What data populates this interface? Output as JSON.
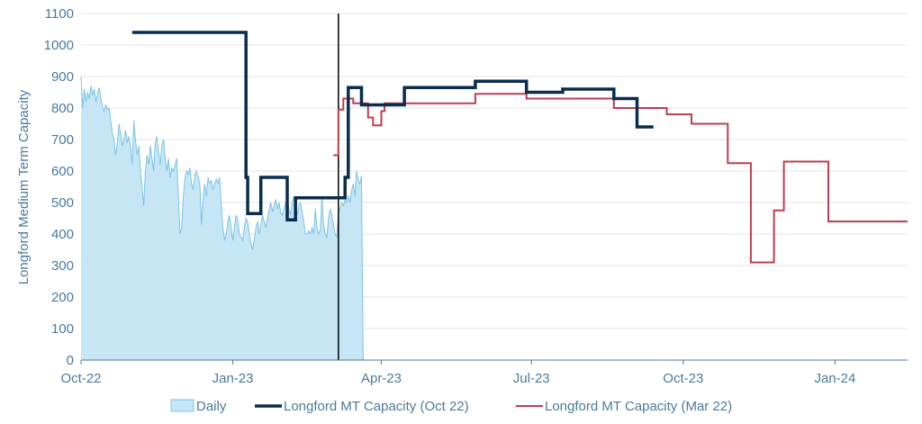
{
  "chart_data": {
    "type": "line",
    "title": "",
    "xlabel": "",
    "ylabel": "Longford Medium Term Capacity",
    "ylim": [
      0,
      1100
    ],
    "y_ticks": [
      0,
      100,
      200,
      300,
      400,
      500,
      600,
      700,
      800,
      900,
      1000,
      1100
    ],
    "x_range": [
      "2022-10-01",
      "2024-02-14"
    ],
    "x_ticks": [
      {
        "date": "2022-10-01",
        "label": "Oct-22"
      },
      {
        "date": "2023-01-01",
        "label": "Jan-23"
      },
      {
        "date": "2023-04-01",
        "label": "Apr-23"
      },
      {
        "date": "2023-07-01",
        "label": "Jul-23"
      },
      {
        "date": "2023-10-01",
        "label": "Oct-23"
      },
      {
        "date": "2024-01-01",
        "label": "Jan-24"
      }
    ],
    "grid": "horizontal",
    "legend_position": "bottom",
    "vertical_marker": "2023-03-06",
    "colors": {
      "daily_fill": "#c6e6f5",
      "daily_line": "#7cc4e4",
      "oct22": "#0a2c4e",
      "mar22": "#be3d4f",
      "gridline": "#e6e6e6",
      "axis": "#4a7b9d",
      "marker": "#000000"
    },
    "series": [
      {
        "name": "Daily",
        "kind": "area",
        "points": [
          [
            "2022-10-01",
            900
          ],
          [
            "2022-10-02",
            800
          ],
          [
            "2022-10-03",
            860
          ],
          [
            "2022-10-04",
            820
          ],
          [
            "2022-10-05",
            850
          ],
          [
            "2022-10-06",
            830
          ],
          [
            "2022-10-07",
            870
          ],
          [
            "2022-10-08",
            840
          ],
          [
            "2022-10-09",
            860
          ],
          [
            "2022-10-10",
            820
          ],
          [
            "2022-10-11",
            845
          ],
          [
            "2022-10-12",
            865
          ],
          [
            "2022-10-13",
            830
          ],
          [
            "2022-10-14",
            805
          ],
          [
            "2022-10-15",
            790
          ],
          [
            "2022-10-16",
            810
          ],
          [
            "2022-10-17",
            795
          ],
          [
            "2022-10-18",
            800
          ],
          [
            "2022-10-19",
            760
          ],
          [
            "2022-10-20",
            720
          ],
          [
            "2022-10-21",
            700
          ],
          [
            "2022-10-22",
            650
          ],
          [
            "2022-10-23",
            690
          ],
          [
            "2022-10-24",
            750
          ],
          [
            "2022-10-25",
            720
          ],
          [
            "2022-10-26",
            680
          ],
          [
            "2022-10-27",
            700
          ],
          [
            "2022-10-28",
            730
          ],
          [
            "2022-10-29",
            690
          ],
          [
            "2022-10-30",
            710
          ],
          [
            "2022-10-31",
            680
          ],
          [
            "2022-11-01",
            620
          ],
          [
            "2022-11-02",
            760
          ],
          [
            "2022-11-03",
            700
          ],
          [
            "2022-11-04",
            650
          ],
          [
            "2022-11-05",
            680
          ],
          [
            "2022-11-06",
            600
          ],
          [
            "2022-11-07",
            550
          ],
          [
            "2022-11-08",
            490
          ],
          [
            "2022-11-09",
            600
          ],
          [
            "2022-11-10",
            650
          ],
          [
            "2022-11-11",
            620
          ],
          [
            "2022-11-12",
            680
          ],
          [
            "2022-11-13",
            640
          ],
          [
            "2022-11-14",
            600
          ],
          [
            "2022-11-15",
            690
          ],
          [
            "2022-11-16",
            710
          ],
          [
            "2022-11-17",
            660
          ],
          [
            "2022-11-18",
            620
          ],
          [
            "2022-11-19",
            680
          ],
          [
            "2022-11-20",
            700
          ],
          [
            "2022-11-21",
            640
          ],
          [
            "2022-11-22",
            600
          ],
          [
            "2022-11-23",
            640
          ],
          [
            "2022-11-24",
            580
          ],
          [
            "2022-11-25",
            610
          ],
          [
            "2022-11-26",
            600
          ],
          [
            "2022-11-27",
            620
          ],
          [
            "2022-11-28",
            640
          ],
          [
            "2022-11-29",
            520
          ],
          [
            "2022-11-30",
            400
          ],
          [
            "2022-12-01",
            420
          ],
          [
            "2022-12-02",
            520
          ],
          [
            "2022-12-03",
            580
          ],
          [
            "2022-12-04",
            600
          ],
          [
            "2022-12-05",
            590
          ],
          [
            "2022-12-06",
            610
          ],
          [
            "2022-12-07",
            560
          ],
          [
            "2022-12-08",
            540
          ],
          [
            "2022-12-09",
            590
          ],
          [
            "2022-12-10",
            600
          ],
          [
            "2022-12-11",
            580
          ],
          [
            "2022-12-12",
            560
          ],
          [
            "2022-12-13",
            430
          ],
          [
            "2022-12-14",
            520
          ],
          [
            "2022-12-15",
            560
          ],
          [
            "2022-12-16",
            520
          ],
          [
            "2022-12-17",
            580
          ],
          [
            "2022-12-18",
            560
          ],
          [
            "2022-12-19",
            570
          ],
          [
            "2022-12-20",
            540
          ],
          [
            "2022-12-21",
            560
          ],
          [
            "2022-12-22",
            575
          ],
          [
            "2022-12-23",
            560
          ],
          [
            "2022-12-24",
            580
          ],
          [
            "2022-12-25",
            500
          ],
          [
            "2022-12-26",
            420
          ],
          [
            "2022-12-27",
            380
          ],
          [
            "2022-12-28",
            400
          ],
          [
            "2022-12-29",
            440
          ],
          [
            "2022-12-30",
            460
          ],
          [
            "2022-12-31",
            420
          ],
          [
            "2023-01-01",
            380
          ],
          [
            "2023-01-02",
            420
          ],
          [
            "2023-01-03",
            460
          ],
          [
            "2023-01-04",
            440
          ],
          [
            "2023-01-05",
            400
          ],
          [
            "2023-01-06",
            390
          ],
          [
            "2023-01-07",
            380
          ],
          [
            "2023-01-08",
            420
          ],
          [
            "2023-01-09",
            450
          ],
          [
            "2023-01-10",
            440
          ],
          [
            "2023-01-11",
            400
          ],
          [
            "2023-01-12",
            370
          ],
          [
            "2023-01-13",
            350
          ],
          [
            "2023-01-14",
            380
          ],
          [
            "2023-01-15",
            420
          ],
          [
            "2023-01-16",
            440
          ],
          [
            "2023-01-17",
            400
          ],
          [
            "2023-01-18",
            430
          ],
          [
            "2023-01-19",
            460
          ],
          [
            "2023-01-20",
            440
          ],
          [
            "2023-01-21",
            420
          ],
          [
            "2023-01-22",
            450
          ],
          [
            "2023-01-23",
            480
          ],
          [
            "2023-01-24",
            500
          ],
          [
            "2023-01-25",
            470
          ],
          [
            "2023-01-26",
            490
          ],
          [
            "2023-01-27",
            510
          ],
          [
            "2023-01-28",
            480
          ],
          [
            "2023-01-29",
            500
          ],
          [
            "2023-01-30",
            470
          ],
          [
            "2023-01-31",
            460
          ],
          [
            "2023-02-01",
            480
          ],
          [
            "2023-02-02",
            500
          ],
          [
            "2023-02-03",
            520
          ],
          [
            "2023-02-04",
            480
          ],
          [
            "2023-02-05",
            460
          ],
          [
            "2023-02-06",
            500
          ],
          [
            "2023-02-07",
            520
          ],
          [
            "2023-02-08",
            480
          ],
          [
            "2023-02-09",
            460
          ],
          [
            "2023-02-10",
            490
          ],
          [
            "2023-02-11",
            500
          ],
          [
            "2023-02-12",
            470
          ],
          [
            "2023-02-13",
            440
          ],
          [
            "2023-02-14",
            400
          ],
          [
            "2023-02-15",
            400
          ],
          [
            "2023-02-16",
            410
          ],
          [
            "2023-02-17",
            400
          ],
          [
            "2023-02-18",
            420
          ],
          [
            "2023-02-19",
            400
          ],
          [
            "2023-02-20",
            480
          ],
          [
            "2023-02-21",
            420
          ],
          [
            "2023-02-22",
            400
          ],
          [
            "2023-02-23",
            410
          ],
          [
            "2023-02-24",
            520
          ],
          [
            "2023-02-25",
            430
          ],
          [
            "2023-02-26",
            400
          ],
          [
            "2023-02-27",
            390
          ],
          [
            "2023-02-28",
            450
          ],
          [
            "2023-03-01",
            480
          ],
          [
            "2023-03-02",
            460
          ],
          [
            "2023-03-03",
            430
          ],
          [
            "2023-03-04",
            400
          ],
          [
            "2023-03-05",
            390
          ],
          [
            "2023-03-06",
            470
          ],
          [
            "2023-03-07",
            480
          ],
          [
            "2023-03-08",
            500
          ],
          [
            "2023-03-09",
            490
          ],
          [
            "2023-03-10",
            510
          ],
          [
            "2023-03-11",
            500
          ],
          [
            "2023-03-12",
            520
          ],
          [
            "2023-03-13",
            500
          ],
          [
            "2023-03-14",
            540
          ],
          [
            "2023-03-15",
            560
          ],
          [
            "2023-03-16",
            520
          ],
          [
            "2023-03-17",
            600
          ],
          [
            "2023-03-18",
            570
          ],
          [
            "2023-03-19",
            560
          ],
          [
            "2023-03-20",
            585
          ],
          [
            "2023-03-21",
            0
          ]
        ]
      },
      {
        "name": "Longford MT Capacity (Oct 22)",
        "kind": "step",
        "points": [
          [
            "2022-11-01",
            1040
          ],
          [
            "2023-01-09",
            1040
          ],
          [
            "2023-01-09",
            580
          ],
          [
            "2023-01-10",
            580
          ],
          [
            "2023-01-10",
            465
          ],
          [
            "2023-01-18",
            465
          ],
          [
            "2023-01-18",
            580
          ],
          [
            "2023-02-03",
            580
          ],
          [
            "2023-02-03",
            445
          ],
          [
            "2023-02-08",
            445
          ],
          [
            "2023-02-08",
            515
          ],
          [
            "2023-03-10",
            515
          ],
          [
            "2023-03-10",
            580
          ],
          [
            "2023-03-12",
            580
          ],
          [
            "2023-03-12",
            865
          ],
          [
            "2023-03-20",
            865
          ],
          [
            "2023-03-20",
            810
          ],
          [
            "2023-04-15",
            810
          ],
          [
            "2023-04-15",
            865
          ],
          [
            "2023-05-28",
            865
          ],
          [
            "2023-05-28",
            885
          ],
          [
            "2023-06-28",
            885
          ],
          [
            "2023-06-28",
            850
          ],
          [
            "2023-07-20",
            850
          ],
          [
            "2023-07-20",
            860
          ],
          [
            "2023-08-20",
            860
          ],
          [
            "2023-08-20",
            830
          ],
          [
            "2023-09-03",
            830
          ],
          [
            "2023-09-03",
            740
          ],
          [
            "2023-09-13",
            740
          ]
        ]
      },
      {
        "name": "Longford MT Capacity (Mar 22)",
        "kind": "step",
        "points": [
          [
            "2023-03-03",
            650
          ],
          [
            "2023-03-06",
            650
          ],
          [
            "2023-03-06",
            795
          ],
          [
            "2023-03-09",
            795
          ],
          [
            "2023-03-09",
            830
          ],
          [
            "2023-03-15",
            830
          ],
          [
            "2023-03-15",
            815
          ],
          [
            "2023-03-24",
            815
          ],
          [
            "2023-03-24",
            770
          ],
          [
            "2023-03-27",
            770
          ],
          [
            "2023-03-27",
            745
          ],
          [
            "2023-04-01",
            745
          ],
          [
            "2023-04-01",
            790
          ],
          [
            "2023-04-03",
            790
          ],
          [
            "2023-04-03",
            815
          ],
          [
            "2023-05-28",
            815
          ],
          [
            "2023-05-28",
            845
          ],
          [
            "2023-06-28",
            845
          ],
          [
            "2023-06-28",
            830
          ],
          [
            "2023-08-20",
            830
          ],
          [
            "2023-08-20",
            800
          ],
          [
            "2023-09-21",
            800
          ],
          [
            "2023-09-21",
            780
          ],
          [
            "2023-10-06",
            780
          ],
          [
            "2023-10-06",
            750
          ],
          [
            "2023-10-28",
            750
          ],
          [
            "2023-10-28",
            625
          ],
          [
            "2023-11-11",
            625
          ],
          [
            "2023-11-11",
            310
          ],
          [
            "2023-11-25",
            310
          ],
          [
            "2023-11-25",
            475
          ],
          [
            "2023-12-01",
            475
          ],
          [
            "2023-12-01",
            630
          ],
          [
            "2023-12-28",
            630
          ],
          [
            "2023-12-28",
            440
          ],
          [
            "2024-02-14",
            440
          ]
        ]
      }
    ]
  }
}
